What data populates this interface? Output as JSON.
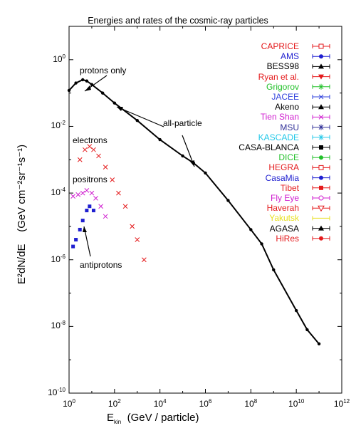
{
  "title": "Energies and rates of the cosmic-ray particles",
  "ylabel": {
    "main": "E²dN/dE",
    "unit": "(GeV cm⁻²sr⁻¹s⁻¹)"
  },
  "xlabel": {
    "main": "E",
    "sub": "kin",
    "unit": "(GeV / particle)"
  },
  "annotations": {
    "protons_only": "protons only",
    "all_particle": "all-particle",
    "electrons": "electrons",
    "positrons": "positrons",
    "antiprotons": "antiprotons"
  },
  "x_ticks": [
    {
      "base": "10",
      "exp": "0"
    },
    {
      "base": "10",
      "exp": "2"
    },
    {
      "base": "10",
      "exp": "4"
    },
    {
      "base": "10",
      "exp": "6"
    },
    {
      "base": "10",
      "exp": "8"
    },
    {
      "base": "10",
      "exp": "10"
    },
    {
      "base": "10",
      "exp": "12"
    }
  ],
  "y_ticks": [
    {
      "base": "10",
      "exp": "0"
    },
    {
      "base": "10",
      "exp": "-2"
    },
    {
      "base": "10",
      "exp": "-4"
    },
    {
      "base": "10",
      "exp": "-6"
    },
    {
      "base": "10",
      "exp": "-8"
    },
    {
      "base": "10",
      "exp": "-10"
    }
  ],
  "legend": [
    {
      "name": "CAPRICE",
      "color": "#e41a1c",
      "marker": "square-open"
    },
    {
      "name": "AMS",
      "color": "#1f1fd0",
      "marker": "circle"
    },
    {
      "name": "BESS98",
      "color": "#000000",
      "marker": "triangle"
    },
    {
      "name": "Ryan et al.",
      "color": "#e41a1c",
      "marker": "triangle-down"
    },
    {
      "name": "Grigorov",
      "color": "#22c02a",
      "marker": "star"
    },
    {
      "name": "JACEE",
      "color": "#3344dd",
      "marker": "x"
    },
    {
      "name": "Akeno",
      "color": "#000000",
      "marker": "triangle"
    },
    {
      "name": "Tien Shan",
      "color": "#d020d0",
      "marker": "x"
    },
    {
      "name": "MSU",
      "color": "#333399",
      "marker": "star"
    },
    {
      "name": "KASCADE",
      "color": "#22c8e8",
      "marker": "star"
    },
    {
      "name": "CASA-BLANCA",
      "color": "#000000",
      "marker": "square"
    },
    {
      "name": "DICE",
      "color": "#22c02a",
      "marker": "circle"
    },
    {
      "name": "HEGRA",
      "color": "#e41a1c",
      "marker": "square-open"
    },
    {
      "name": "CasaMia",
      "color": "#1f1fd0",
      "marker": "circle"
    },
    {
      "name": "Tibet",
      "color": "#e41a1c",
      "marker": "square"
    },
    {
      "name": "Fly Eye",
      "color": "#d020d0",
      "marker": "circle-open"
    },
    {
      "name": "Haverah",
      "color": "#e41a1c",
      "marker": "triangle-down-open"
    },
    {
      "name": "Yakutsk",
      "color": "#e8e020",
      "marker": "none"
    },
    {
      "name": "AGASA",
      "color": "#000000",
      "marker": "triangle"
    },
    {
      "name": "HiRes",
      "color": "#e41a1c",
      "marker": "circle"
    }
  ],
  "chart_data": {
    "type": "scatter",
    "x_scale": "log",
    "y_scale": "log",
    "xlim": [
      1,
      1000000000000.0
    ],
    "ylim": [
      1e-10,
      10
    ],
    "series": [
      {
        "name": "all-particle",
        "color": "#000000",
        "x": [
          1,
          2,
          4,
          6,
          10,
          30,
          100,
          1000,
          10000.0,
          100000.0,
          300000.0,
          1000000.0,
          10000000.0,
          100000000.0,
          300000000.0,
          1000000000.0,
          10000000000.0,
          30000000000.0,
          100000000000.0
        ],
        "y": [
          0.12,
          0.2,
          0.25,
          0.23,
          0.18,
          0.1,
          0.05,
          0.015,
          0.004,
          0.0013,
          0.0008,
          0.0004,
          6e-05,
          8e-06,
          3e-06,
          5e-07,
          3e-08,
          8e-09,
          3e-09
        ]
      },
      {
        "name": "electrons",
        "color": "#e41a1c",
        "x": [
          3,
          5,
          8,
          12,
          20,
          40,
          80,
          150,
          300,
          600,
          1000,
          2000
        ],
        "y": [
          0.001,
          0.002,
          0.0025,
          0.002,
          0.0013,
          0.0006,
          0.00025,
          0.0001,
          4e-05,
          1e-05,
          4e-06,
          1e-06
        ]
      },
      {
        "name": "positrons",
        "color": "#d020d0",
        "x": [
          1.5,
          2.5,
          4,
          6,
          10,
          15,
          25,
          40
        ],
        "y": [
          8e-05,
          9e-05,
          0.0001,
          0.00012,
          0.0001,
          7e-05,
          4e-05,
          2e-05
        ]
      },
      {
        "name": "antiprotons",
        "color": "#1f1fd0",
        "x": [
          1.5,
          2,
          3,
          4,
          6,
          8,
          12
        ],
        "y": [
          2.5e-06,
          4e-06,
          8e-06,
          1.5e-05,
          3e-05,
          4e-05,
          3e-05
        ]
      }
    ]
  }
}
